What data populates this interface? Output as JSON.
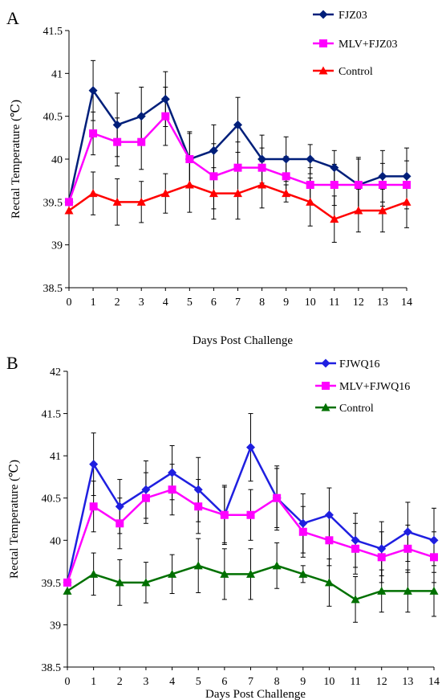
{
  "chart_data": [
    {
      "type": "line",
      "panel_label": "A",
      "xlabel": "Days Post Challenge",
      "ylabel": "Rectal Temperature (℃)",
      "x": [
        0,
        1,
        2,
        3,
        4,
        5,
        6,
        7,
        8,
        9,
        10,
        11,
        12,
        13,
        14
      ],
      "ylim": [
        38.5,
        41.5
      ],
      "yticks": [
        38.5,
        39,
        39.5,
        40,
        40.5,
        41,
        41.5
      ],
      "legend_position": "top-right",
      "series": [
        {
          "name": "FJZ03",
          "color": "#001f7a",
          "marker": "diamond",
          "values": [
            39.5,
            40.8,
            40.4,
            40.5,
            40.7,
            40.0,
            40.1,
            40.4,
            40.0,
            40.0,
            40.0,
            39.9,
            39.7,
            39.8,
            39.8
          ],
          "error": [
            0,
            0.35,
            0.37,
            0.34,
            0.32,
            0.32,
            0.3,
            0.32,
            0.28,
            0.26,
            0.17,
            0.2,
            0.32,
            0.3,
            0.33
          ]
        },
        {
          "name": "MLV+FJZ03",
          "color": "#ff00ff",
          "marker": "square",
          "values": [
            39.5,
            40.3,
            40.2,
            40.2,
            40.5,
            40.0,
            39.8,
            39.9,
            39.9,
            39.8,
            39.7,
            39.7,
            39.7,
            39.7,
            39.7
          ],
          "error": [
            0,
            0.25,
            0.28,
            0.32,
            0.34,
            0.3,
            0.38,
            0.3,
            0.23,
            0.23,
            0.2,
            0.24,
            0.3,
            0.25,
            0.28
          ]
        },
        {
          "name": "Control",
          "color": "#ff0000",
          "marker": "triangle",
          "values": [
            39.4,
            39.6,
            39.5,
            39.5,
            39.6,
            39.7,
            39.6,
            39.6,
            39.7,
            39.6,
            39.5,
            39.3,
            39.4,
            39.4,
            39.5
          ],
          "error": [
            0,
            0.25,
            0.27,
            0.24,
            0.23,
            0.32,
            0.3,
            0.3,
            0.27,
            0.1,
            0.28,
            0.27,
            0.25,
            0.25,
            0.3
          ]
        }
      ]
    },
    {
      "type": "line",
      "panel_label": "B",
      "xlabel": "Days Post Challenge",
      "ylabel": "Rectal Temperature (℃)",
      "x": [
        0,
        1,
        2,
        3,
        4,
        5,
        6,
        7,
        8,
        9,
        10,
        11,
        12,
        13,
        14
      ],
      "ylim": [
        38.5,
        42
      ],
      "yticks": [
        38.5,
        39,
        39.5,
        40,
        40.5,
        41,
        41.5,
        42
      ],
      "legend_position": "top-right",
      "series": [
        {
          "name": "FJWQ16",
          "color": "#1f1fe0",
          "marker": "diamond",
          "values": [
            39.5,
            40.9,
            40.4,
            40.6,
            40.8,
            40.6,
            40.3,
            41.1,
            40.5,
            40.2,
            40.3,
            40.0,
            39.9,
            40.1,
            40.0
          ],
          "error": [
            0,
            0.37,
            0.32,
            0.34,
            0.32,
            0.38,
            0.35,
            0.4,
            0.38,
            0.35,
            0.32,
            0.32,
            0.32,
            0.35,
            0.38
          ]
        },
        {
          "name": "MLV+FJWQ16",
          "color": "#ff00ff",
          "marker": "square",
          "values": [
            39.5,
            40.4,
            40.2,
            40.5,
            40.6,
            40.4,
            40.3,
            40.3,
            40.5,
            40.1,
            40.0,
            39.9,
            39.8,
            39.9,
            39.8
          ],
          "error": [
            0,
            0.3,
            0.3,
            0.3,
            0.3,
            0.32,
            0.33,
            0.3,
            0.35,
            0.3,
            0.3,
            0.3,
            0.3,
            0.28,
            0.3
          ]
        },
        {
          "name": "Control",
          "color": "#007000",
          "marker": "triangle",
          "values": [
            39.4,
            39.6,
            39.5,
            39.5,
            39.6,
            39.7,
            39.6,
            39.6,
            39.7,
            39.6,
            39.5,
            39.3,
            39.4,
            39.4,
            39.4
          ],
          "error": [
            0,
            0.25,
            0.27,
            0.24,
            0.23,
            0.32,
            0.3,
            0.3,
            0.27,
            0.1,
            0.28,
            0.27,
            0.25,
            0.25,
            0.3
          ]
        }
      ]
    }
  ]
}
